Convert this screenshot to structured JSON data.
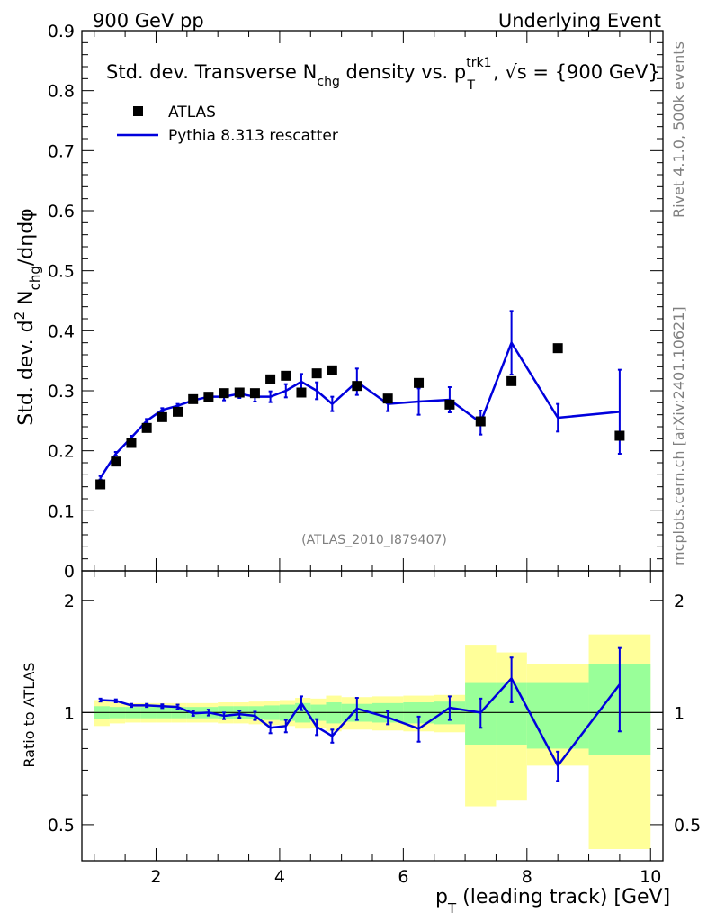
{
  "header": {
    "left": "900 GeV pp",
    "right": "Underlying Event"
  },
  "side_labels": {
    "rivet": "Rivet 4.1.0,  500k events",
    "mcplots": "mcplots.cern.ch [arXiv:2401.10621]"
  },
  "chart_data": [
    {
      "type": "scatter",
      "panel": "main",
      "title_parts": {
        "pre": "Std. dev. Transverse N",
        "chg_sub": "chg",
        "mid": " density vs. p",
        "pt_sup": "trk1",
        "pt_sub": "T",
        "post": ", √s = {900 GeV}"
      },
      "ylabel_parts": {
        "pre": "Std. dev. d",
        "sup": "2",
        "n": " N",
        "sub": "chg",
        "post": "/dηdφ"
      },
      "watermark": "(ATLAS_2010_I879407)",
      "xlim": [
        0.8,
        10.2
      ],
      "ylim": [
        0,
        0.9
      ],
      "y_ticks": [
        0,
        0.1,
        0.2,
        0.3,
        0.4,
        0.5,
        0.6,
        0.7,
        0.8,
        0.9
      ],
      "y_tick_labels": [
        "0",
        "0.1",
        "0.2",
        "0.3",
        "0.4",
        "0.5",
        "0.6",
        "0.7",
        "0.8",
        "0.9"
      ],
      "legend": [
        {
          "name": "ATLAS",
          "marker": "square",
          "color": "#000000"
        },
        {
          "name": "Pythia 8.313 rescatter",
          "marker": "line",
          "color": "#0000dd"
        }
      ],
      "series": [
        {
          "name": "ATLAS",
          "x": [
            1.1,
            1.35,
            1.6,
            1.85,
            2.1,
            2.35,
            2.6,
            2.85,
            3.1,
            3.35,
            3.6,
            3.85,
            4.1,
            4.35,
            4.6,
            4.85,
            5.25,
            5.75,
            6.25,
            6.75,
            7.25,
            7.75,
            8.5,
            9.5
          ],
          "y": [
            0.144,
            0.182,
            0.213,
            0.238,
            0.256,
            0.265,
            0.286,
            0.29,
            0.296,
            0.297,
            0.296,
            0.319,
            0.325,
            0.297,
            0.329,
            0.334,
            0.308,
            0.287,
            0.313,
            0.277,
            0.249,
            0.316,
            0.371,
            0.225
          ]
        },
        {
          "name": "Pythia 8.313 rescatter",
          "x": [
            1.1,
            1.35,
            1.6,
            1.85,
            2.1,
            2.35,
            2.6,
            2.85,
            3.1,
            3.35,
            3.6,
            3.85,
            4.1,
            4.35,
            4.6,
            4.85,
            5.25,
            5.75,
            6.25,
            6.75,
            7.25,
            7.75,
            8.5,
            9.5
          ],
          "y": [
            0.155,
            0.195,
            0.222,
            0.25,
            0.268,
            0.275,
            0.284,
            0.29,
            0.29,
            0.295,
            0.29,
            0.29,
            0.3,
            0.315,
            0.3,
            0.278,
            0.315,
            0.278,
            0.282,
            0.285,
            0.247,
            0.38,
            0.255,
            0.265
          ],
          "yerr": [
            0.003,
            0.003,
            0.003,
            0.003,
            0.003,
            0.003,
            0.004,
            0.005,
            0.006,
            0.007,
            0.008,
            0.009,
            0.011,
            0.013,
            0.014,
            0.012,
            0.022,
            0.012,
            0.022,
            0.021,
            0.02,
            0.053,
            0.023,
            0.07
          ]
        }
      ]
    },
    {
      "type": "line",
      "panel": "ratio",
      "ylabel": "Ratio to ATLAS",
      "xlabel_parts": {
        "p": "p",
        "sub": "T",
        "post": " (leading track) [GeV]"
      },
      "xlim": [
        0.8,
        10.2
      ],
      "ylim": [
        0.4,
        2.4
      ],
      "y_scale": "log",
      "y_ticks": [
        0.5,
        1,
        2
      ],
      "y_tick_labels": [
        "0.5",
        "1",
        "2"
      ],
      "x_ticks": [
        2,
        4,
        6,
        8,
        10
      ],
      "x_tick_labels": [
        "2",
        "4",
        "6",
        "8",
        "10"
      ],
      "bins": [
        {
          "lo": 1.0,
          "hi": 1.25,
          "stat": [
            0.96,
            1.04
          ],
          "tot": [
            0.92,
            1.08
          ]
        },
        {
          "lo": 1.25,
          "hi": 1.5,
          "stat": [
            0.965,
            1.035
          ],
          "tot": [
            0.935,
            1.065
          ]
        },
        {
          "lo": 1.5,
          "hi": 1.75,
          "stat": [
            0.965,
            1.035
          ],
          "tot": [
            0.94,
            1.06
          ]
        },
        {
          "lo": 1.75,
          "hi": 2.0,
          "stat": [
            0.965,
            1.035
          ],
          "tot": [
            0.94,
            1.06
          ]
        },
        {
          "lo": 2.0,
          "hi": 2.25,
          "stat": [
            0.965,
            1.035
          ],
          "tot": [
            0.94,
            1.06
          ]
        },
        {
          "lo": 2.25,
          "hi": 2.5,
          "stat": [
            0.965,
            1.035
          ],
          "tot": [
            0.94,
            1.06
          ]
        },
        {
          "lo": 2.5,
          "hi": 2.75,
          "stat": [
            0.965,
            1.035
          ],
          "tot": [
            0.94,
            1.06
          ]
        },
        {
          "lo": 2.75,
          "hi": 3.0,
          "stat": [
            0.965,
            1.035
          ],
          "tot": [
            0.94,
            1.06
          ]
        },
        {
          "lo": 3.0,
          "hi": 3.25,
          "stat": [
            0.96,
            1.04
          ],
          "tot": [
            0.935,
            1.065
          ]
        },
        {
          "lo": 3.25,
          "hi": 3.5,
          "stat": [
            0.96,
            1.04
          ],
          "tot": [
            0.935,
            1.065
          ]
        },
        {
          "lo": 3.5,
          "hi": 3.75,
          "stat": [
            0.96,
            1.04
          ],
          "tot": [
            0.93,
            1.07
          ]
        },
        {
          "lo": 3.75,
          "hi": 4.0,
          "stat": [
            0.955,
            1.045
          ],
          "tot": [
            0.925,
            1.075
          ]
        },
        {
          "lo": 4.0,
          "hi": 4.25,
          "stat": [
            0.95,
            1.05
          ],
          "tot": [
            0.92,
            1.08
          ]
        },
        {
          "lo": 4.25,
          "hi": 4.5,
          "stat": [
            0.94,
            1.06
          ],
          "tot": [
            0.905,
            1.095
          ]
        },
        {
          "lo": 4.5,
          "hi": 4.75,
          "stat": [
            0.95,
            1.05
          ],
          "tot": [
            0.91,
            1.09
          ]
        },
        {
          "lo": 4.75,
          "hi": 5.0,
          "stat": [
            0.935,
            1.065
          ],
          "tot": [
            0.89,
            1.11
          ]
        },
        {
          "lo": 5.0,
          "hi": 5.5,
          "stat": [
            0.945,
            1.055
          ],
          "tot": [
            0.9,
            1.1
          ]
        },
        {
          "lo": 5.5,
          "hi": 6.0,
          "stat": [
            0.94,
            1.06
          ],
          "tot": [
            0.895,
            1.105
          ]
        },
        {
          "lo": 6.0,
          "hi": 6.5,
          "stat": [
            0.935,
            1.065
          ],
          "tot": [
            0.89,
            1.11
          ]
        },
        {
          "lo": 6.5,
          "hi": 7.0,
          "stat": [
            0.93,
            1.07
          ],
          "tot": [
            0.885,
            1.115
          ]
        },
        {
          "lo": 7.0,
          "hi": 7.5,
          "stat": [
            0.82,
            1.2
          ],
          "tot": [
            0.56,
            1.52
          ]
        },
        {
          "lo": 7.5,
          "hi": 8.0,
          "stat": [
            0.82,
            1.2
          ],
          "tot": [
            0.58,
            1.45
          ]
        },
        {
          "lo": 8.0,
          "hi": 9.0,
          "stat": [
            0.8,
            1.2
          ],
          "tot": [
            0.72,
            1.35
          ]
        },
        {
          "lo": 9.0,
          "hi": 10.0,
          "stat": [
            0.77,
            1.35
          ],
          "tot": [
            0.43,
            1.62
          ]
        }
      ],
      "series": [
        {
          "name": "Pythia 8.313 rescatter / ATLAS",
          "x": [
            1.1,
            1.35,
            1.6,
            1.85,
            2.1,
            2.35,
            2.6,
            2.85,
            3.1,
            3.35,
            3.6,
            3.85,
            4.1,
            4.35,
            4.6,
            4.85,
            5.25,
            5.75,
            6.25,
            6.75,
            7.25,
            7.75,
            8.5,
            9.5
          ],
          "y": [
            1.08,
            1.075,
            1.045,
            1.045,
            1.04,
            1.035,
            0.995,
            1.0,
            0.98,
            0.99,
            0.98,
            0.91,
            0.92,
            1.06,
            0.915,
            0.865,
            1.025,
            0.97,
            0.905,
            1.03,
            1.0,
            1.235,
            0.72,
            1.19
          ],
          "yerr": [
            0.01,
            0.01,
            0.01,
            0.01,
            0.012,
            0.015,
            0.015,
            0.018,
            0.02,
            0.022,
            0.025,
            0.03,
            0.035,
            0.045,
            0.045,
            0.035,
            0.07,
            0.04,
            0.07,
            0.075,
            0.09,
            0.17,
            0.065,
            0.3
          ]
        }
      ]
    }
  ]
}
